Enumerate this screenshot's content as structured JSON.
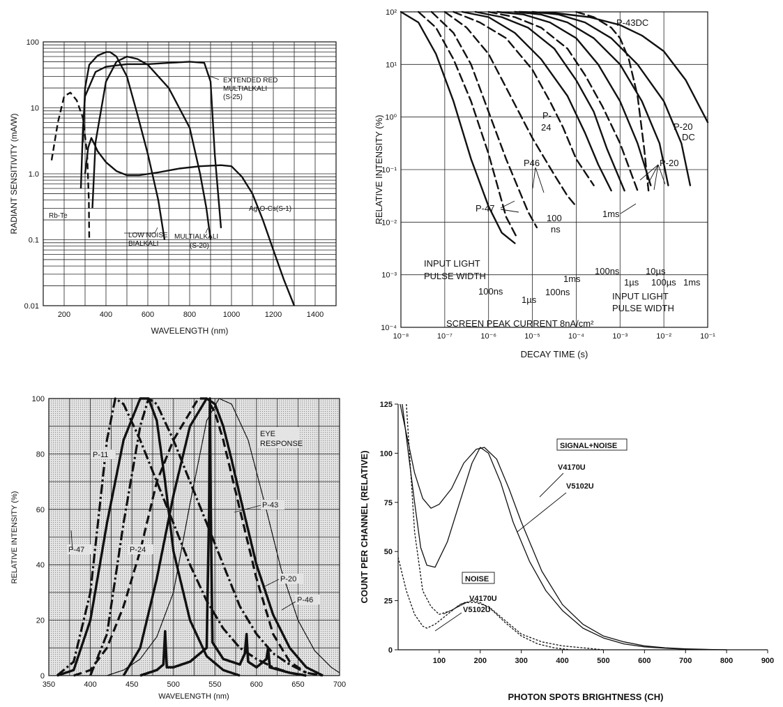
{
  "chart_data": [
    {
      "type": "line",
      "xlabel": "WAVELENGTH (nm)",
      "ylabel": "RADIANT SENSITIVITY (mA/W)",
      "xlim": [
        100,
        1500
      ],
      "ylim": [
        0.01,
        100
      ],
      "y_scale": "log",
      "x_ticks": [
        200,
        400,
        600,
        800,
        1000,
        1200,
        1400
      ],
      "y_ticks": [
        "0.01",
        "0.1",
        "1.0",
        "10",
        "100"
      ],
      "grid": true,
      "series": [
        {
          "dash": true,
          "x": [
            140,
            170,
            200,
            230,
            260,
            290,
            310,
            318,
            320
          ],
          "y": [
            1.6,
            6,
            15,
            17,
            13,
            7,
            2,
            0.4,
            0.1
          ]
        },
        {
          "dash": false,
          "x": [
            300,
            315,
            330,
            345,
            360,
            400,
            450,
            500,
            560,
            650,
            750,
            850,
            950,
            1000,
            1050,
            1100,
            1150,
            1200,
            1250,
            1300
          ],
          "y": [
            1.0,
            2.5,
            3.5,
            2.8,
            2.2,
            1.5,
            1.1,
            0.95,
            0.95,
            1.05,
            1.2,
            1.3,
            1.35,
            1.3,
            0.9,
            0.5,
            0.2,
            0.07,
            0.025,
            0.01
          ]
        },
        {
          "dash": false,
          "x": [
            290,
            300,
            320,
            360,
            400,
            420,
            450,
            500,
            550,
            600,
            650,
            680
          ],
          "y": [
            3,
            20,
            45,
            62,
            70,
            70,
            60,
            30,
            8,
            2,
            0.4,
            0.1
          ]
        },
        {
          "dash": false,
          "x": [
            335,
            350,
            400,
            450,
            500,
            550,
            600,
            700,
            800,
            850,
            880,
            900
          ],
          "y": [
            0.3,
            3,
            25,
            50,
            60,
            55,
            45,
            20,
            5,
            1,
            0.3,
            0.1
          ]
        },
        {
          "dash": false,
          "x": [
            280,
            290,
            300,
            350,
            400,
            500,
            600,
            700,
            800,
            870,
            900,
            920,
            950
          ],
          "y": [
            0.6,
            5,
            15,
            35,
            42,
            46,
            46,
            48,
            50,
            48,
            25,
            2,
            0.15
          ]
        }
      ],
      "labels": [
        "EXTENDED RED",
        "MULTIALKALI",
        "(S-25)",
        "Rb-Te",
        "LOW NOISE",
        "BIALKALI",
        "MULTIALKALI",
        "(S-20)",
        "Ag-O-Cs(S-1)"
      ]
    },
    {
      "type": "line",
      "xlabel": "DECAY TIME (s)",
      "ylabel": "RELATIVE INTENSITY (%)",
      "x_scale": "log",
      "y_scale": "log",
      "xlim": [
        "1e-8",
        "1e-1"
      ],
      "ylim": [
        "1e-4",
        "1e2"
      ],
      "x_ticks": [
        "10⁻⁸",
        "10⁻⁷",
        "10⁻⁶",
        "10⁻⁵",
        "10⁻⁴",
        "10⁻³",
        "10⁻²",
        "10⁻¹"
      ],
      "y_ticks": [
        "10⁻⁴",
        "10⁻³",
        "10⁻²",
        "10⁻¹",
        "10⁰",
        "10¹",
        "10²"
      ],
      "grid": true,
      "series": [
        {
          "dash": false,
          "x": [
            -8,
            -7.6,
            -7.2,
            -6.8,
            -6.4,
            -6.0,
            -5.7,
            -5.4
          ],
          "y": [
            2,
            1.8,
            1.2,
            0.3,
            -0.8,
            -1.7,
            -2.2,
            -2.4
          ]
        },
        {
          "dash": true,
          "x": [
            -7.6,
            -7.2,
            -6.8,
            -6.4,
            -6.0,
            -5.8,
            -5.6,
            -5.35
          ],
          "y": [
            2,
            1.7,
            1.1,
            0.3,
            -0.7,
            -1.3,
            -1.9,
            -2.3
          ]
        },
        {
          "dash": true,
          "x": [
            -7.3,
            -6.8,
            -6.4,
            -6.0,
            -5.6,
            -5.3,
            -5.1,
            -4.9
          ],
          "y": [
            2,
            1.6,
            1.0,
            0.1,
            -0.8,
            -1.4,
            -1.8,
            -2.1
          ]
        },
        {
          "dash": true,
          "x": [
            -7.0,
            -6.5,
            -6.0,
            -5.5,
            -5.0,
            -4.5,
            -4.2,
            -4.0
          ],
          "y": [
            2,
            1.7,
            1.2,
            0.4,
            -0.4,
            -1.1,
            -1.5,
            -1.7
          ]
        },
        {
          "dash": true,
          "x": [
            -6.8,
            -6.2,
            -5.6,
            -5.0,
            -4.6,
            -4.3,
            -4.0,
            -3.6
          ],
          "y": [
            2,
            1.8,
            1.5,
            0.9,
            0.3,
            -0.2,
            -0.8,
            -1.3
          ]
        },
        {
          "dash": false,
          "x": [
            -6.6,
            -6.0,
            -5.4,
            -4.8,
            -4.2,
            -3.8,
            -3.5,
            -3.2
          ],
          "y": [
            2,
            1.9,
            1.6,
            1.1,
            0.4,
            -0.3,
            -0.9,
            -1.4
          ]
        },
        {
          "dash": false,
          "x": [
            -6.3,
            -5.7,
            -5.1,
            -4.5,
            -4.0,
            -3.6,
            -3.3,
            -2.9
          ],
          "y": [
            2,
            1.9,
            1.7,
            1.3,
            0.7,
            0.1,
            -0.6,
            -1.4
          ]
        },
        {
          "dash": true,
          "x": [
            -6.0,
            -5.4,
            -4.8,
            -4.2,
            -3.8,
            -3.4,
            -3.0,
            -2.6
          ],
          "y": [
            2,
            1.9,
            1.7,
            1.3,
            0.8,
            0.2,
            -0.5,
            -1.4
          ]
        },
        {
          "dash": false,
          "x": [
            -5.8,
            -5.2,
            -4.6,
            -4.0,
            -3.5,
            -3.0,
            -2.6,
            -2.3
          ],
          "y": [
            2,
            1.95,
            1.8,
            1.5,
            1.0,
            0.3,
            -0.5,
            -1.3
          ]
        },
        {
          "dash": false,
          "x": [
            -5.4,
            -4.8,
            -4.2,
            -3.6,
            -3.0,
            -2.5,
            -2.1,
            -1.9
          ],
          "y": [
            2,
            1.95,
            1.8,
            1.5,
            1.0,
            0.3,
            -0.5,
            -1.3
          ]
        },
        {
          "dash": false,
          "x": [
            -5.0,
            -4.4,
            -3.8,
            -3.2,
            -2.6,
            -2.0,
            -1.6,
            -1.4
          ],
          "y": [
            2,
            1.95,
            1.8,
            1.5,
            1.0,
            0.3,
            -0.5,
            -1.3
          ]
        },
        {
          "dash": true,
          "x": [
            -4.0,
            -3.6,
            -3.2,
            -3.0,
            -2.8,
            -2.6,
            -2.45,
            -2.35
          ],
          "y": [
            2,
            1.9,
            1.7,
            1.5,
            1.1,
            0.4,
            -0.6,
            -1.4
          ]
        },
        {
          "dash": false,
          "x": [
            -5.3,
            -4.5,
            -3.7,
            -3.0,
            -2.5,
            -2.0,
            -1.5,
            -1.0
          ],
          "y": [
            2,
            1.98,
            1.9,
            1.75,
            1.55,
            1.25,
            0.7,
            -0.1
          ]
        }
      ],
      "labels": [
        "P-43DC",
        "P-20",
        "DC",
        "P-",
        "24",
        "P-20",
        "P46",
        "1ms",
        "100",
        "ns",
        "P-47",
        "INPUT LIGHT",
        "PULSE WIDTH",
        "100ns",
        "1µs",
        "100ns",
        "1ms",
        "100ns",
        "1µs",
        "10µs",
        "100µs",
        "1ms",
        "INPUT LIGHT",
        "PULSE WIDTH",
        "SCREEN PEAK CURRENT 8nA/cm²"
      ]
    },
    {
      "type": "line",
      "xlabel": "WAVELENGTH (nm)",
      "ylabel": "RELATIVE INTENSITY (%)",
      "xlim": [
        350,
        700
      ],
      "ylim": [
        0,
        100
      ],
      "x_ticks": [
        350,
        400,
        450,
        500,
        550,
        600,
        650,
        700
      ],
      "y_ticks": [
        0,
        20,
        40,
        60,
        80,
        100
      ],
      "grid": true,
      "series": [
        {
          "style": "dashdot",
          "x": [
            360,
            380,
            400,
            420,
            430,
            440,
            460,
            480,
            500,
            520,
            540,
            560,
            580,
            600,
            620,
            640,
            660
          ],
          "y": [
            0,
            5,
            30,
            85,
            100,
            98,
            85,
            70,
            55,
            40,
            27,
            17,
            10,
            6,
            3,
            1,
            0
          ]
        },
        {
          "style": "thick",
          "x": [
            360,
            380,
            400,
            420,
            440,
            460,
            470,
            480,
            490,
            500,
            520,
            540,
            560,
            580
          ],
          "y": [
            0,
            2,
            20,
            55,
            85,
            100,
            100,
            92,
            70,
            45,
            20,
            7,
            2,
            0
          ]
        },
        {
          "style": "dashed",
          "x": [
            380,
            400,
            420,
            440,
            460,
            480,
            500,
            520,
            530,
            540,
            550,
            560,
            580,
            600,
            620,
            640,
            660
          ],
          "y": [
            0,
            2,
            10,
            25,
            45,
            70,
            85,
            95,
            100,
            100,
            95,
            85,
            60,
            35,
            15,
            5,
            1
          ]
        },
        {
          "style": "dashdot",
          "x": [
            400,
            420,
            440,
            460,
            470,
            480,
            500,
            520,
            540,
            560,
            580,
            600,
            620,
            640,
            660,
            680
          ],
          "y": [
            0,
            15,
            55,
            90,
            100,
            98,
            85,
            70,
            55,
            40,
            25,
            15,
            8,
            4,
            1,
            0
          ]
        },
        {
          "style": "thick",
          "x": [
            440,
            460,
            480,
            500,
            520,
            540,
            550,
            560,
            570,
            580,
            600,
            620,
            640,
            660,
            680
          ],
          "y": [
            0,
            10,
            35,
            65,
            90,
            100,
            98,
            90,
            78,
            65,
            40,
            22,
            10,
            3,
            0
          ]
        },
        {
          "style": "thin",
          "x": [
            420,
            440,
            460,
            480,
            500,
            520,
            540,
            555,
            570,
            590,
            610,
            630,
            650,
            670,
            690,
            700
          ],
          "y": [
            0,
            2,
            6,
            14,
            30,
            62,
            92,
            100,
            98,
            85,
            62,
            38,
            20,
            9,
            3,
            1
          ]
        },
        {
          "style": "spiky",
          "x": [
            460,
            480,
            488,
            490,
            492,
            500,
            520,
            540,
            543,
            544,
            545,
            547,
            560,
            580,
            586,
            588,
            590,
            600,
            612,
            614,
            616,
            640,
            660
          ],
          "y": [
            0,
            2,
            4,
            16,
            3,
            3,
            5,
            10,
            60,
            100,
            60,
            12,
            6,
            4,
            8,
            15,
            5,
            3,
            6,
            10,
            3,
            1,
            0
          ]
        }
      ],
      "labels": [
        "P-11",
        "EYE",
        "RESPONSE",
        "P-43",
        "P-47",
        "P-24",
        "P-20",
        "P-46"
      ]
    },
    {
      "type": "line",
      "xlabel": "PHOTON SPOTS BRIGHTNESS (CH)",
      "ylabel": "COUNT PER CHANNEL (RELATIVE)",
      "xlim": [
        0,
        900
      ],
      "ylim": [
        0,
        125
      ],
      "x_ticks": [
        100,
        200,
        300,
        400,
        500,
        600,
        700,
        800,
        900
      ],
      "y_ticks": [
        0,
        25,
        50,
        75,
        100,
        125
      ],
      "grid": false,
      "series": [
        {
          "name": "V4170U",
          "dash": false,
          "x": [
            5,
            20,
            40,
            60,
            80,
            100,
            130,
            160,
            190,
            210,
            240,
            270,
            300,
            350,
            400,
            450,
            500,
            550,
            600,
            650,
            700,
            750,
            800
          ],
          "y": [
            125,
            110,
            90,
            77,
            72,
            74,
            82,
            95,
            102,
            103,
            97,
            82,
            65,
            40,
            23,
            13,
            7,
            4,
            2,
            1,
            0.5,
            0.2,
            0
          ]
        },
        {
          "name": "V5102U",
          "dash": false,
          "x": [
            10,
            25,
            40,
            55,
            70,
            90,
            120,
            150,
            180,
            200,
            220,
            250,
            280,
            320,
            360,
            400,
            450,
            500,
            550,
            600,
            650,
            700,
            750,
            800
          ],
          "y": [
            125,
            100,
            75,
            52,
            43,
            42,
            55,
            75,
            95,
            103,
            100,
            85,
            65,
            45,
            30,
            20,
            11,
            6,
            3,
            1.5,
            0.8,
            0.3,
            0.1,
            0
          ]
        },
        {
          "name": "V4170U",
          "dash": true,
          "x": [
            20,
            40,
            60,
            80,
            100,
            130,
            160,
            190,
            220,
            260,
            300,
            350,
            400,
            450,
            500
          ],
          "y": [
            125,
            60,
            30,
            22,
            18,
            20,
            24,
            24,
            22,
            15,
            8,
            4,
            2,
            1,
            0
          ]
        },
        {
          "name": "V5102U",
          "dash": true,
          "x": [
            0,
            20,
            40,
            60,
            70,
            90,
            120,
            150,
            180,
            200,
            230,
            260,
            300,
            340,
            380,
            420
          ],
          "y": [
            47,
            30,
            18,
            12,
            11,
            13,
            18,
            23,
            25,
            24,
            20,
            14,
            7,
            3,
            1,
            0
          ]
        }
      ],
      "labels": [
        "SIGNAL+NOISE",
        "V4170U",
        "V5102U",
        "NOISE",
        "V4170U",
        "V5102U"
      ]
    }
  ]
}
